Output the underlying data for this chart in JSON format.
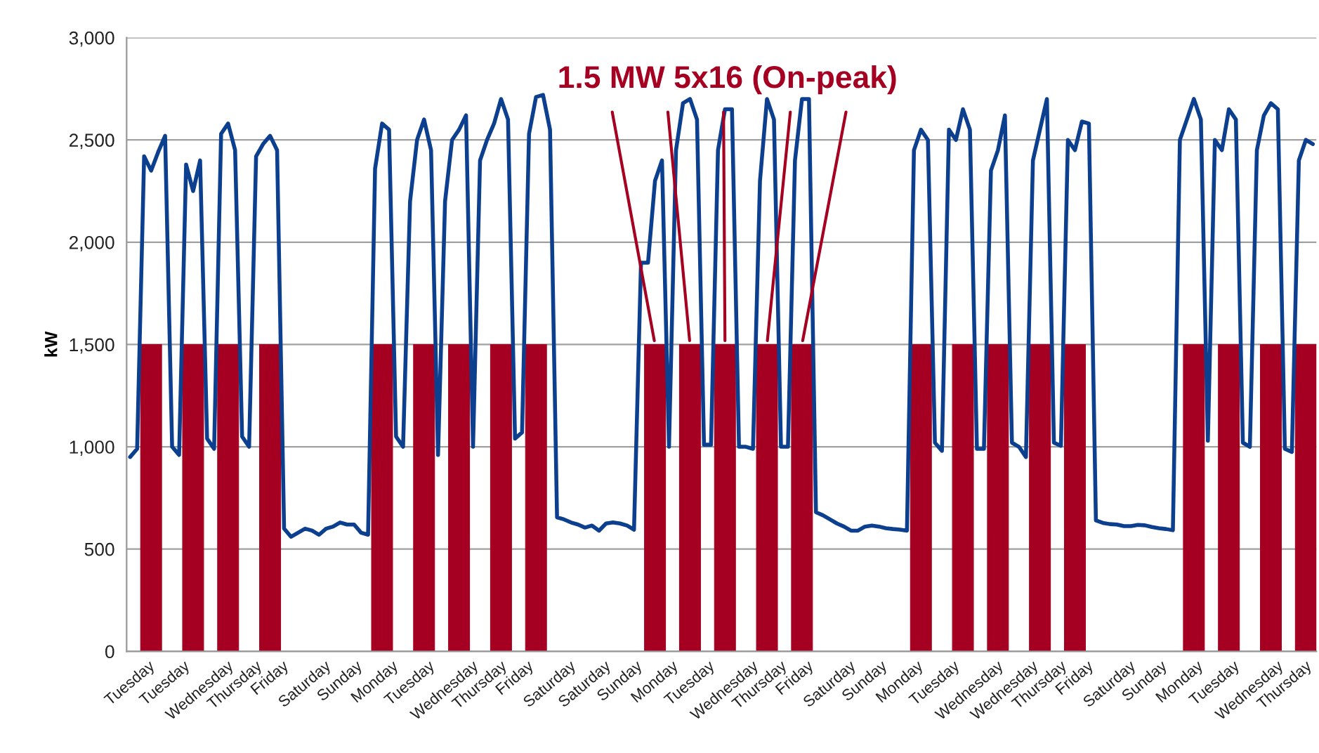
{
  "chart_data": {
    "type": "line",
    "ylabel": "kW",
    "annotations": [
      {
        "text": "1.5 MW 5x16 (On-peak)",
        "y": 1500
      }
    ],
    "categories": [
      "Tuesday",
      null,
      null,
      null,
      null,
      "Tuesday",
      null,
      null,
      null,
      null,
      "Wednesday",
      null,
      null,
      null,
      null,
      "Thursday",
      null,
      null,
      null,
      null,
      "Friday",
      null,
      null,
      null,
      null,
      "Saturday",
      null,
      null,
      null,
      null,
      "Sunday",
      null,
      null,
      null,
      null,
      "Monday",
      null,
      null,
      null,
      null,
      "Tuesday",
      null,
      null,
      null,
      null,
      "Wednesday",
      null,
      null,
      null,
      null,
      "Thursday",
      null,
      null,
      null,
      null,
      "Friday",
      null,
      null,
      null,
      null,
      "Saturday",
      null,
      null,
      null,
      null,
      "Saturday",
      null,
      null,
      null,
      null,
      "Sunday",
      null,
      null,
      null,
      null,
      "Monday",
      null,
      null,
      null,
      null,
      "Tuesday",
      null,
      null,
      null,
      null,
      "Wednesday",
      null,
      null,
      null,
      null,
      "Thursday",
      null,
      null,
      null,
      null,
      "Friday",
      null,
      null,
      null,
      null,
      "Saturday",
      null,
      null,
      null,
      null,
      "Sunday",
      null,
      null,
      null,
      null,
      "Monday",
      null,
      null,
      null,
      null,
      "Tuesday",
      null,
      null,
      null,
      null,
      "Wednesday",
      null,
      null,
      null,
      null,
      "Wednesday",
      null,
      null,
      null,
      null,
      "Thursday",
      null,
      null,
      null,
      null,
      "Friday",
      null,
      null,
      null,
      null,
      "Saturday",
      null,
      null,
      null,
      null,
      "Sunday",
      null,
      null,
      null,
      null,
      "Monday",
      null,
      null,
      null,
      null,
      "Tuesday",
      null,
      null,
      null,
      null,
      "Wednesday",
      null,
      null,
      null,
      null,
      "Thursday",
      null,
      null,
      null,
      null
    ],
    "ylim": [
      0,
      3000
    ],
    "yticks": [
      {
        "value": 0,
        "label": "0"
      },
      {
        "value": 500,
        "label": "500"
      },
      {
        "value": 1000,
        "label": "1,000"
      },
      {
        "value": 1500,
        "label": "1,500"
      },
      {
        "value": 2000,
        "label": "2,000"
      },
      {
        "value": 2500,
        "label": "2,500"
      },
      {
        "value": 3000,
        "label": "3,000"
      }
    ],
    "grid": "y",
    "series": [
      {
        "type": "bar",
        "color": "#a50021",
        "values": [
          null,
          null,
          1500,
          1500,
          1500,
          null,
          null,
          null,
          1500,
          1500,
          1500,
          null,
          null,
          1500,
          1500,
          1500,
          null,
          null,
          null,
          1500,
          1500,
          1500,
          null,
          null,
          null,
          null,
          null,
          null,
          null,
          null,
          null,
          null,
          null,
          null,
          null,
          1500,
          1500,
          1500,
          null,
          null,
          null,
          1500,
          1500,
          1500,
          null,
          null,
          1500,
          1500,
          1500,
          null,
          null,
          null,
          1500,
          1500,
          1500,
          null,
          null,
          1500,
          1500,
          1500,
          null,
          null,
          null,
          null,
          null,
          null,
          null,
          null,
          null,
          null,
          null,
          null,
          null,
          null,
          1500,
          1500,
          1500,
          null,
          null,
          1500,
          1500,
          1500,
          null,
          null,
          1500,
          1500,
          1500,
          null,
          null,
          null,
          1500,
          1500,
          1500,
          null,
          null,
          1500,
          1500,
          1500,
          null,
          null,
          null,
          null,
          null,
          null,
          null,
          null,
          null,
          null,
          null,
          null,
          null,
          null,
          1500,
          1500,
          1500,
          null,
          null,
          null,
          1500,
          1500,
          1500,
          null,
          null,
          1500,
          1500,
          1500,
          null,
          null,
          null,
          1500,
          1500,
          1500,
          null,
          null,
          1500,
          1500,
          1500,
          null,
          null,
          null,
          null,
          null,
          null,
          null,
          null,
          null,
          null,
          null,
          null,
          null,
          null,
          1500,
          1500,
          1500,
          null,
          null,
          1500,
          1500,
          1500,
          null,
          null,
          null,
          1500,
          1500,
          1500,
          null,
          null,
          1500,
          1500,
          1500
        ]
      },
      {
        "color": "#0d3f8f",
        "values": [
          950,
          990,
          2420,
          2350,
          2440,
          2520,
          1000,
          960,
          2380,
          2250,
          2400,
          1040,
          990,
          2530,
          2580,
          2450,
          1050,
          1000,
          2420,
          2480,
          2520,
          2450,
          600,
          560,
          580,
          600,
          590,
          570,
          600,
          610,
          630,
          620,
          620,
          580,
          570,
          2360,
          2580,
          2550,
          1050,
          1000,
          2200,
          2500,
          2600,
          2450,
          960,
          2200,
          2500,
          2550,
          2620,
          1000,
          2400,
          2500,
          2580,
          2700,
          2600,
          1040,
          1070,
          2530,
          2710,
          2720,
          2550,
          655,
          645,
          630,
          620,
          605,
          615,
          590,
          625,
          630,
          625,
          615,
          595,
          1900,
          1900,
          2300,
          2400,
          1000,
          2450,
          2680,
          2700,
          2600,
          1010,
          1010,
          2450,
          2650,
          2650,
          1000,
          1000,
          990,
          2300,
          2700,
          2600,
          1000,
          1000,
          2400,
          2700,
          2700,
          680,
          665,
          645,
          625,
          610,
          590,
          590,
          610,
          615,
          610,
          602,
          598,
          595,
          590,
          2450,
          2550,
          2500,
          1020,
          980,
          2550,
          2500,
          2650,
          2550,
          990,
          990,
          2350,
          2450,
          2620,
          1020,
          1000,
          950,
          2400,
          2550,
          2700,
          1020,
          1005,
          2500,
          2450,
          2590,
          2580,
          640,
          628,
          622,
          620,
          612,
          612,
          618,
          616,
          608,
          602,
          598,
          592,
          2500,
          2600,
          2700,
          2600,
          1030,
          2500,
          2450,
          2650,
          2600,
          1020,
          1000,
          2450,
          2620,
          2680,
          2650,
          990,
          975,
          2400,
          2500,
          2480
        ]
      }
    ]
  }
}
